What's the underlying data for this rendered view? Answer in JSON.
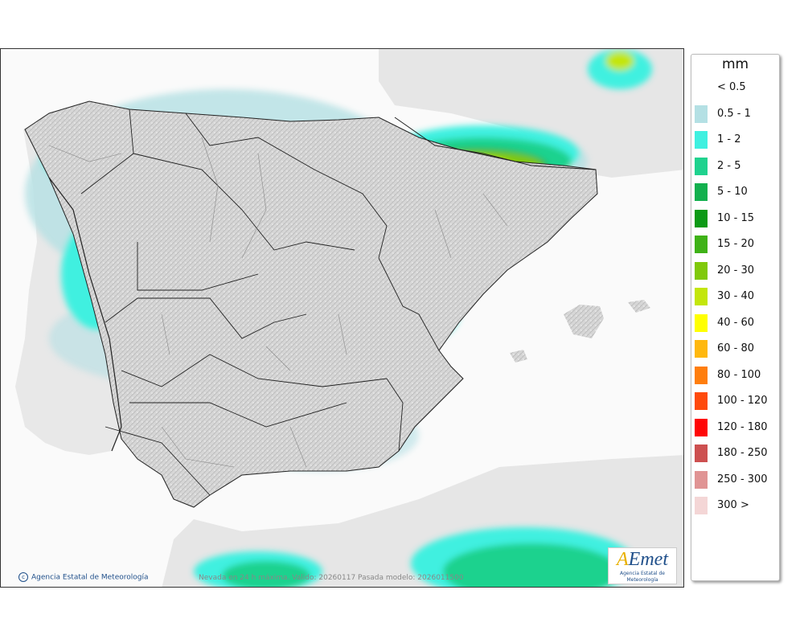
{
  "map": {
    "credit": "Agencia Estatal de Meteorología",
    "caption": "Nevada en 24 h máxima. Valido: 20260117 Pasada modelo: 2026011500",
    "logo": {
      "text_a": "A",
      "text_rest": "Emet",
      "subtitle": "Agencia Estatal de Meteorología"
    }
  },
  "legend": {
    "unit": "mm",
    "items": [
      {
        "label": "< 0.5",
        "color": "#ffffff"
      },
      {
        "label": "0.5 - 1",
        "color": "#b4e0e4"
      },
      {
        "label": "1 - 2",
        "color": "#3ff0e0"
      },
      {
        "label": "2 - 5",
        "color": "#1fd28e"
      },
      {
        "label": "5 - 10",
        "color": "#12b04e"
      },
      {
        "label": "10 - 15",
        "color": "#0c9a16"
      },
      {
        "label": "15 - 20",
        "color": "#3fb217"
      },
      {
        "label": "20 - 30",
        "color": "#80c90a"
      },
      {
        "label": "30 - 40",
        "color": "#c3e60a"
      },
      {
        "label": "40 - 60",
        "color": "#ffff00"
      },
      {
        "label": "60 - 80",
        "color": "#ffb80e"
      },
      {
        "label": "80 - 100",
        "color": "#ff7e0d"
      },
      {
        "label": "100 - 120",
        "color": "#ff4a0b"
      },
      {
        "label": "120 - 180",
        "color": "#ff0606"
      },
      {
        "label": "180 - 250",
        "color": "#cd5050"
      },
      {
        "label": "250 - 300",
        "color": "#e09494"
      },
      {
        "label": "300 >",
        "color": "#f4d6d6"
      }
    ]
  }
}
